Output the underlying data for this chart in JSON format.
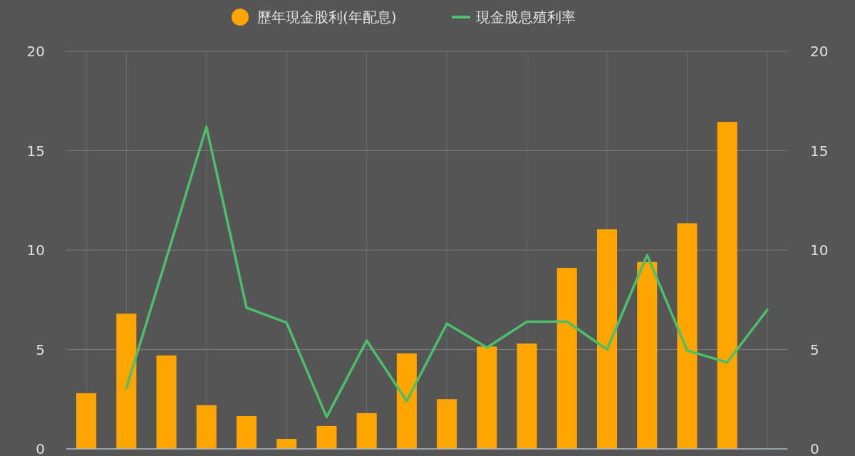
{
  "chart_data": {
    "type": "bar",
    "categories": [
      null,
      null,
      null,
      null,
      null,
      null,
      null,
      null,
      null,
      null,
      null,
      null,
      null,
      null,
      null,
      null,
      null,
      null
    ],
    "series": [
      {
        "name": "歷年現金股利(年配息)",
        "color": "#ffa500",
        "values": [
          2.8,
          6.8,
          4.7,
          2.2,
          1.65,
          0.5,
          1.15,
          1.8,
          4.8,
          2.5,
          5.15,
          5.3,
          9.1,
          11.05,
          9.4,
          11.35,
          16.45,
          null
        ]
      },
      {
        "name": "現金股息殖利率",
        "type": "line",
        "axis": "y2",
        "color": "#4cbf6b",
        "values": [
          null,
          3.05,
          9.6,
          16.2,
          7.1,
          6.35,
          1.6,
          5.45,
          2.4,
          6.3,
          5.1,
          6.4,
          6.4,
          5.0,
          9.75,
          4.95,
          4.35,
          7.0
        ]
      }
    ],
    "ylim": [
      0,
      20
    ],
    "yticks": [
      0,
      5,
      10,
      15,
      20
    ],
    "y2lim": [
      0,
      20
    ],
    "y2ticks": [
      0,
      5,
      10,
      15,
      20
    ],
    "grid": true,
    "legend": "top"
  }
}
